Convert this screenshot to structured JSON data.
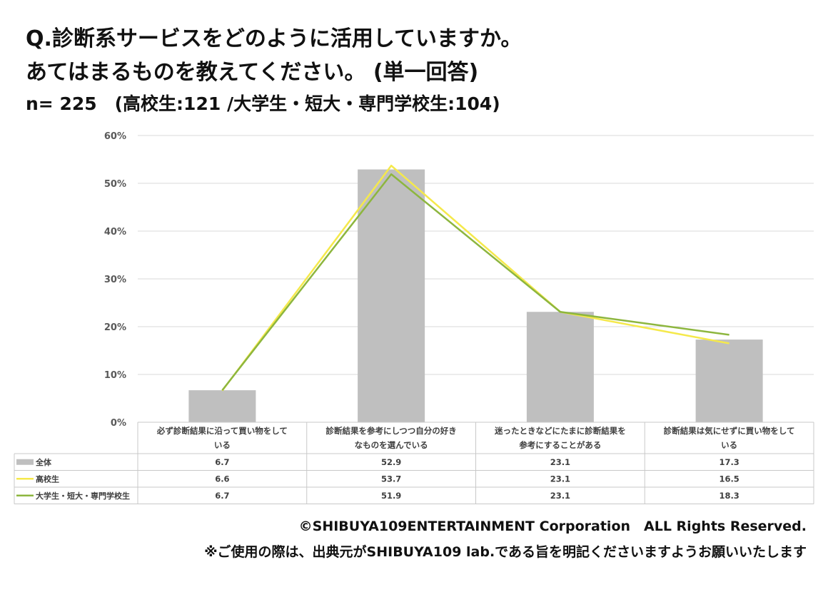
{
  "header": {
    "title_line1": "Q.診断系サービスをどのように活用していますか。",
    "title_line2": "あてはまるものを教えてください。 (単一回答)",
    "sample": "n= 225　(高校生:121 /大学生・短大・専門学校生:104)"
  },
  "footer": {
    "copyright": "©SHIBUYA109ENTERTAINMENT Corporation　ALL Rights Reserved.",
    "notice": "※ご使用の際は、出典元がSHIBUYA109 lab.である旨を明記くださいますようお願いいたします"
  },
  "chart_data": {
    "type": "bar",
    "categories": [
      [
        "必ず診断結果に沿って買い物をして",
        "いる"
      ],
      [
        "診断結果を参考にしつつ自分の好き",
        "なものを選んでいる"
      ],
      [
        "迷ったときなどにたまに診断結果を",
        "参考にすることがある"
      ],
      [
        "診断結果は気にせずに買い物をして",
        "いる"
      ]
    ],
    "ylim": [
      0,
      60
    ],
    "yticks": [
      "0%",
      "10%",
      "20%",
      "30%",
      "40%",
      "50%",
      "60%"
    ],
    "grid": true,
    "legend": "table",
    "series": [
      {
        "name": "全体",
        "kind": "bar",
        "color": "#bfbfbf",
        "values": [
          6.7,
          52.9,
          23.1,
          17.3
        ],
        "labels": [
          "6.7",
          "52.9",
          "23.1",
          "17.3"
        ]
      },
      {
        "name": "高校生",
        "kind": "line",
        "color": "#f5e94b",
        "values": [
          6.6,
          53.7,
          23.1,
          16.5
        ],
        "labels": [
          "6.6",
          "53.7",
          "23.1",
          "16.5"
        ]
      },
      {
        "name": "大学生・短大・専門学校生",
        "kind": "line",
        "color": "#8db63e",
        "values": [
          6.7,
          51.9,
          23.1,
          18.3
        ],
        "labels": [
          "6.7",
          "51.9",
          "23.1",
          "18.3"
        ]
      }
    ]
  }
}
